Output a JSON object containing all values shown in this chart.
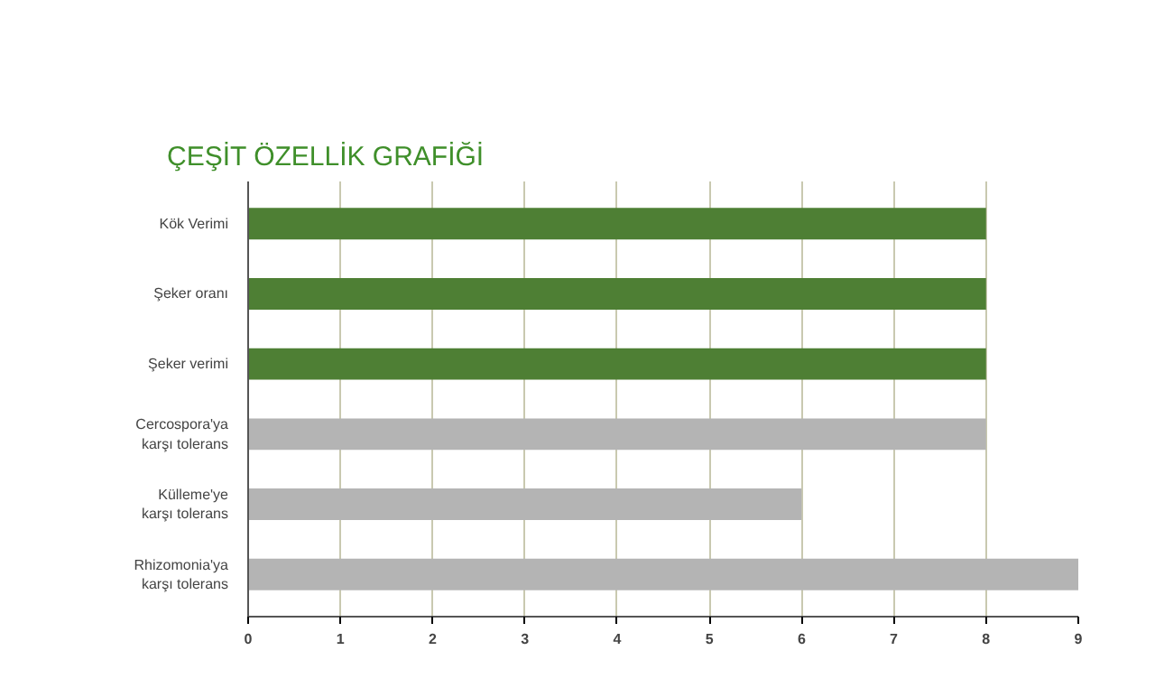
{
  "chart_data": {
    "type": "bar",
    "orientation": "horizontal",
    "title": "ÇEŞİT ÖZELLİK GRAFİĞİ",
    "categories": [
      "Kök Verimi",
      "Şeker oranı",
      "Şeker verimi",
      "Cercospora'ya\nkarşı tolerans",
      "Külleme'ye\nkarşı tolerans",
      "Rhizomonia'ya\nkarşı tolerans"
    ],
    "values": [
      8,
      8,
      8,
      8,
      6,
      9
    ],
    "colors": [
      "#4e7f34",
      "#4e7f34",
      "#4e7f34",
      "#b4b4b4",
      "#b4b4b4",
      "#b4b4b4"
    ],
    "xlim": [
      0,
      9
    ],
    "xticks": [
      0,
      1,
      2,
      3,
      4,
      5,
      6,
      7,
      8,
      9
    ],
    "grid": "x"
  }
}
